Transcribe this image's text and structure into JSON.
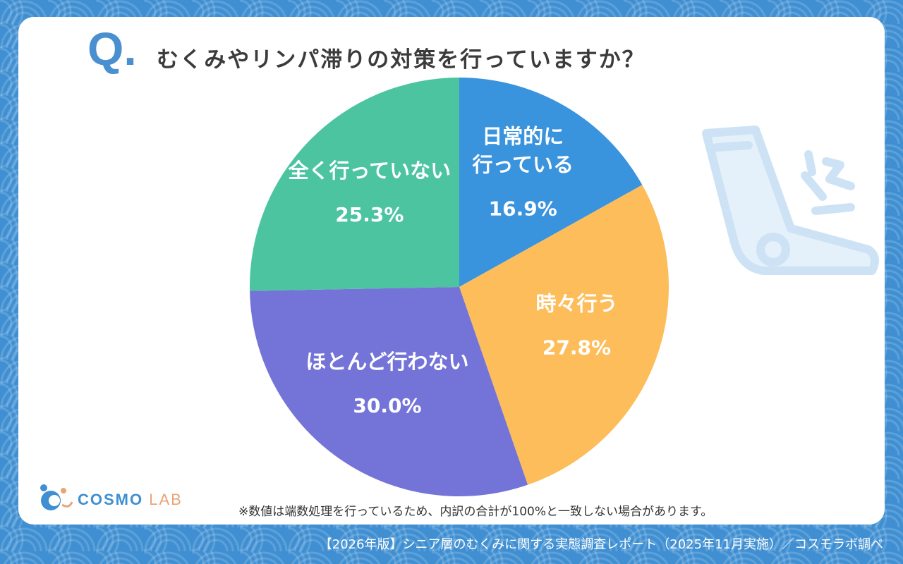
{
  "question": {
    "mark": "Q.",
    "title": "むくみやリンパ滞りの対策を行っていますか？"
  },
  "note": "※数値は端数処理を行っているため、内訳の合計が100%と一致しない場合があります。",
  "footer": "【2026年版】シニア層のむくみに関する実態調査レポート（2025年11月実施）／コスモラボ調べ",
  "logo": {
    "main": "COSMO",
    "sub": "LAB"
  },
  "colors": {
    "accent": "#4a8fd0",
    "background": "#3f8fd2"
  },
  "chart_data": {
    "type": "pie",
    "title": "むくみやリンパ滞りの対策を行っていますか？",
    "start_angle_deg": 0,
    "direction": "clockwise",
    "slices": [
      {
        "label_lines": [
          "日常的に",
          "行っている"
        ],
        "value": 16.9,
        "value_text": "16.9%",
        "color": "#3a93dd"
      },
      {
        "label_lines": [
          "時々行う"
        ],
        "value": 27.8,
        "value_text": "27.8%",
        "color": "#fdbd5a"
      },
      {
        "label_lines": [
          "ほとんど行わない"
        ],
        "value": 30.0,
        "value_text": "30.0%",
        "color": "#7474d8"
      },
      {
        "label_lines": [
          "全く行っていない"
        ],
        "value": 25.3,
        "value_text": "25.3%",
        "color": "#4bc49f"
      }
    ]
  }
}
